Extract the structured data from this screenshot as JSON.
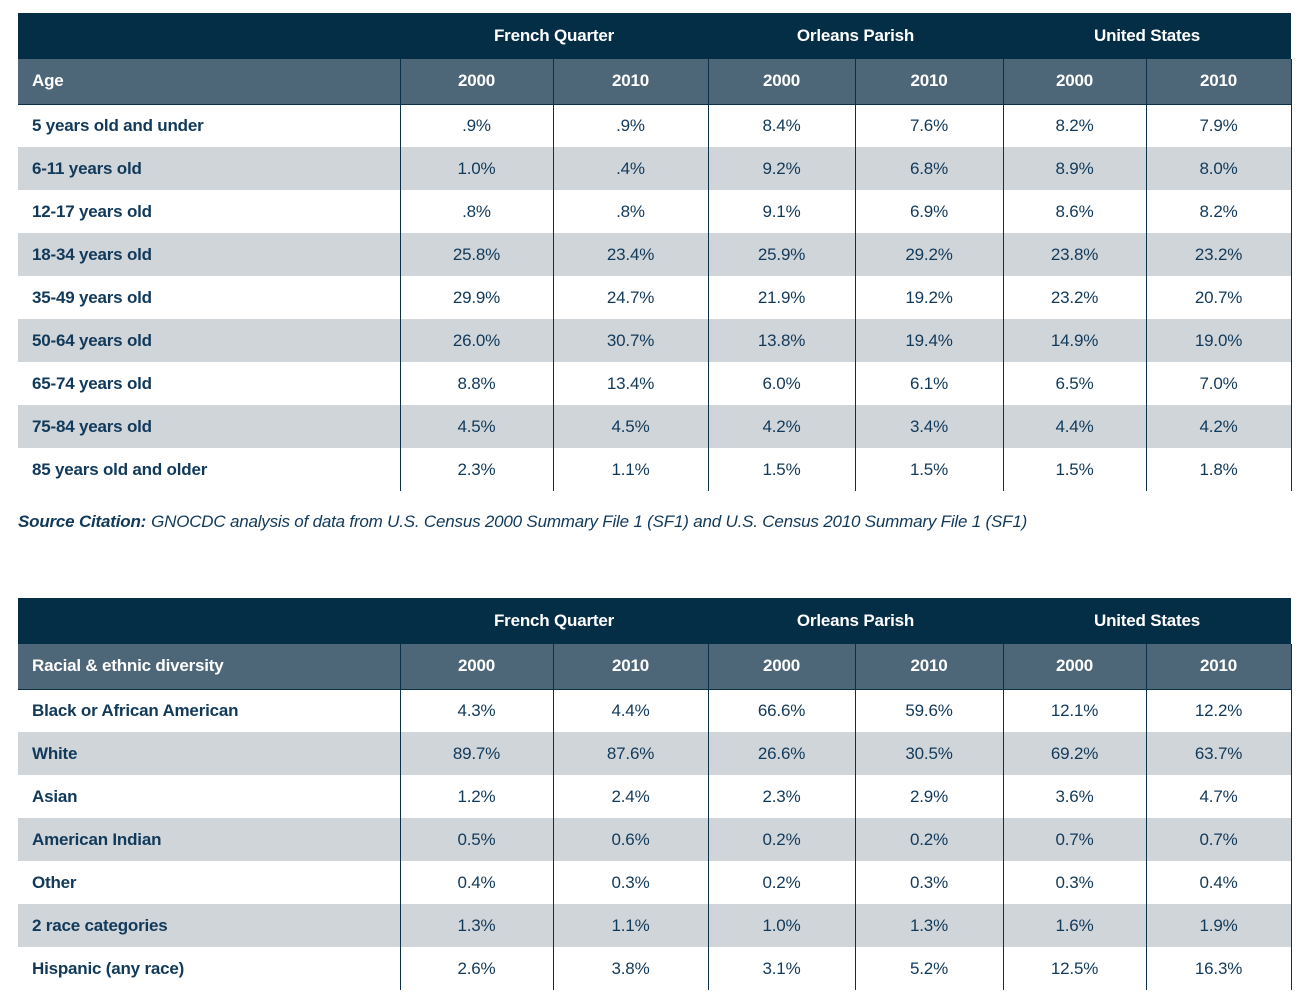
{
  "colors": {
    "header_bg": "#042e45",
    "subheader_bg": "#4d6678",
    "zebra_row_bg": "#d0d5da",
    "text_navy": "#11395a",
    "border_navy": "#0b3149"
  },
  "source_citation": {
    "label": "Source Citation:",
    "text": "GNOCDC analysis of data from U.S. Census 2000 Summary File 1 (SF1) and U.S. Census 2010 Summary File 1 (SF1)"
  },
  "tables": [
    {
      "row_header": "Age",
      "regions": [
        "French Quarter",
        "Orleans Parish",
        "United States"
      ],
      "years": [
        "2000",
        "2010",
        "2000",
        "2010",
        "2000",
        "2010"
      ],
      "rows": [
        {
          "label": "5 years old and under",
          "values": [
            ".9%",
            ".9%",
            "8.4%",
            "7.6%",
            "8.2%",
            "7.9%"
          ]
        },
        {
          "label": "6-11 years old",
          "values": [
            "1.0%",
            ".4%",
            "9.2%",
            "6.8%",
            "8.9%",
            "8.0%"
          ]
        },
        {
          "label": "12-17 years old",
          "values": [
            ".8%",
            ".8%",
            "9.1%",
            "6.9%",
            "8.6%",
            "8.2%"
          ]
        },
        {
          "label": "18-34 years old",
          "values": [
            "25.8%",
            "23.4%",
            "25.9%",
            "29.2%",
            "23.8%",
            "23.2%"
          ]
        },
        {
          "label": "35-49 years old",
          "values": [
            "29.9%",
            "24.7%",
            "21.9%",
            "19.2%",
            "23.2%",
            "20.7%"
          ]
        },
        {
          "label": "50-64 years old",
          "values": [
            "26.0%",
            "30.7%",
            "13.8%",
            "19.4%",
            "14.9%",
            "19.0%"
          ]
        },
        {
          "label": "65-74 years old",
          "values": [
            "8.8%",
            "13.4%",
            "6.0%",
            "6.1%",
            "6.5%",
            "7.0%"
          ]
        },
        {
          "label": "75-84 years old",
          "values": [
            "4.5%",
            "4.5%",
            "4.2%",
            "3.4%",
            "4.4%",
            "4.2%"
          ]
        },
        {
          "label": "85 years old and older",
          "values": [
            "2.3%",
            "1.1%",
            "1.5%",
            "1.5%",
            "1.5%",
            "1.8%"
          ]
        }
      ]
    },
    {
      "row_header": "Racial & ethnic diversity",
      "regions": [
        "French Quarter",
        "Orleans Parish",
        "United States"
      ],
      "years": [
        "2000",
        "2010",
        "2000",
        "2010",
        "2000",
        "2010"
      ],
      "rows": [
        {
          "label": "Black or African American",
          "values": [
            "4.3%",
            "4.4%",
            "66.6%",
            "59.6%",
            "12.1%",
            "12.2%"
          ]
        },
        {
          "label": "White",
          "values": [
            "89.7%",
            "87.6%",
            "26.6%",
            "30.5%",
            "69.2%",
            "63.7%"
          ]
        },
        {
          "label": "Asian",
          "values": [
            "1.2%",
            "2.4%",
            "2.3%",
            "2.9%",
            "3.6%",
            "4.7%"
          ]
        },
        {
          "label": "American Indian",
          "values": [
            "0.5%",
            "0.6%",
            "0.2%",
            "0.2%",
            "0.7%",
            "0.7%"
          ]
        },
        {
          "label": "Other",
          "values": [
            "0.4%",
            "0.3%",
            "0.2%",
            "0.3%",
            "0.3%",
            "0.4%"
          ]
        },
        {
          "label": "2 race categories",
          "values": [
            "1.3%",
            "1.1%",
            "1.0%",
            "1.3%",
            "1.6%",
            "1.9%"
          ]
        },
        {
          "label": "Hispanic (any race)",
          "values": [
            "2.6%",
            "3.8%",
            "3.1%",
            "5.2%",
            "12.5%",
            "16.3%"
          ]
        }
      ]
    }
  ]
}
